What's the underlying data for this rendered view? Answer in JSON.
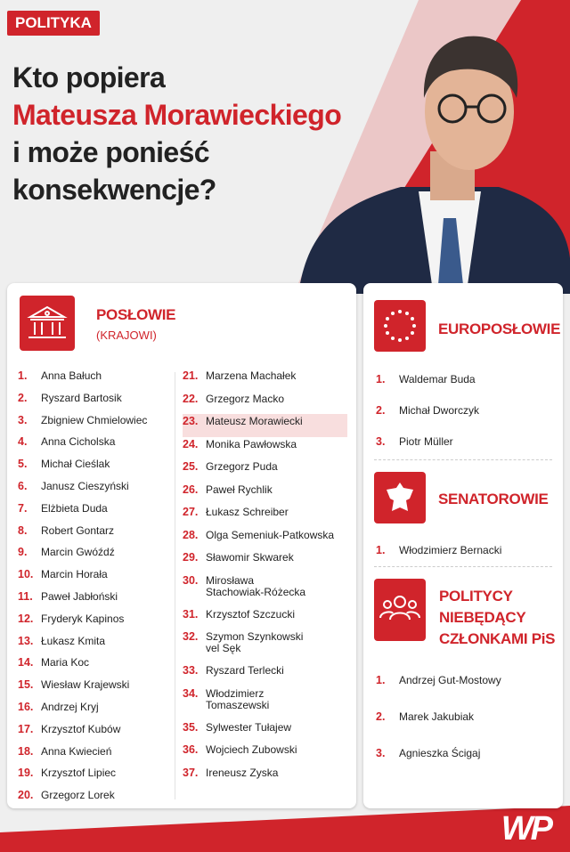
{
  "tag": "POLITYKA",
  "title": [
    "Kto popiera",
    "Mateusza Morawieckiego",
    "i może ponieść",
    "konsekwencje?"
  ],
  "poslowie": {
    "heading": "POSŁOWIE",
    "subheading": "(KRAJOWI)",
    "columns": [
      [
        {
          "number": "1.",
          "name": "Anna Bałuch"
        },
        {
          "number": "2.",
          "name": "Ryszard Bartosik"
        },
        {
          "number": "3.",
          "name": "Zbigniew Chmielowiec"
        },
        {
          "number": "4.",
          "name": "Anna Cicholska"
        },
        {
          "number": "5.",
          "name": "Michał Cieślak"
        },
        {
          "number": "6.",
          "name": "Janusz Cieszyński"
        },
        {
          "number": "7.",
          "name": "Elżbieta Duda"
        },
        {
          "number": "8.",
          "name": "Robert Gontarz"
        },
        {
          "number": "9.",
          "name": "Marcin Gwóźdź"
        },
        {
          "number": "10.",
          "name": "Marcin Horała"
        },
        {
          "number": "11.",
          "name": "Paweł Jabłoński"
        },
        {
          "number": "12.",
          "name": "Fryderyk Kapinos"
        },
        {
          "number": "13.",
          "name": "Łukasz Kmita"
        },
        {
          "number": "14.",
          "name": "Maria Koc"
        },
        {
          "number": "15.",
          "name": "Wiesław Krajewski"
        },
        {
          "number": "16.",
          "name": "Andrzej Kryj"
        },
        {
          "number": "17.",
          "name": "Krzysztof Kubów"
        },
        {
          "number": "18.",
          "name": "Anna Kwiecień"
        },
        {
          "number": "19.",
          "name": "Krzysztof Lipiec"
        },
        {
          "number": "20.",
          "name": "Grzegorz Lorek"
        }
      ],
      [
        {
          "number": "21.",
          "name": "Marzena Machałek"
        },
        {
          "number": "22.",
          "name": "Grzegorz Macko"
        },
        {
          "number": "23.",
          "name": "Mateusz Morawiecki",
          "highlight": true
        },
        {
          "number": "24.",
          "name": "Monika Pawłowska"
        },
        {
          "number": "25.",
          "name": "Grzegorz Puda"
        },
        {
          "number": "26.",
          "name": "Paweł Rychlik"
        },
        {
          "number": "27.",
          "name": "Łukasz Schreiber"
        },
        {
          "number": "28.",
          "name": "Olga Semeniuk-Patkowska"
        },
        {
          "number": "29.",
          "name": "Sławomir Skwarek"
        },
        {
          "number": "30.",
          "name": [
            "Mirosława",
            "Stachowiak-Różecka"
          ]
        },
        {
          "number": "31.",
          "name": "Krzysztof Szczucki"
        },
        {
          "number": "32.",
          "name": [
            "Szymon Szynkowski",
            "vel Sęk"
          ]
        },
        {
          "number": "33.",
          "name": "Ryszard Terlecki"
        },
        {
          "number": "34.",
          "name": [
            "Włodzimierz",
            "Tomaszewski"
          ]
        },
        {
          "number": "35.",
          "name": "Sylwester Tułajew"
        },
        {
          "number": "36.",
          "name": "Wojciech Zubowski"
        },
        {
          "number": "37.",
          "name": "Ireneusz Zyska"
        }
      ]
    ]
  },
  "europoslowie": {
    "heading": "EUROPOSŁOWIE",
    "members": [
      {
        "number": "1.",
        "name": "Waldemar Buda"
      },
      {
        "number": "2.",
        "name": "Michał Dworczyk"
      },
      {
        "number": "3.",
        "name": "Piotr Müller"
      }
    ]
  },
  "senatorowie": {
    "heading": "SENATOROWIE",
    "members": [
      {
        "number": "1.",
        "name": "Włodzimierz Bernacki"
      }
    ]
  },
  "politycy": {
    "heading": [
      "POLITYCY",
      "NIEBĘDĄCY",
      "CZŁONKAMI PiS"
    ],
    "members": [
      {
        "number": "1.",
        "name": "Andrzej Gut-Mostowy"
      },
      {
        "number": "2.",
        "name": "Marek Jakubiak"
      },
      {
        "number": "3.",
        "name": "Agnieszka Ścigaj"
      }
    ]
  },
  "logo": "WP"
}
